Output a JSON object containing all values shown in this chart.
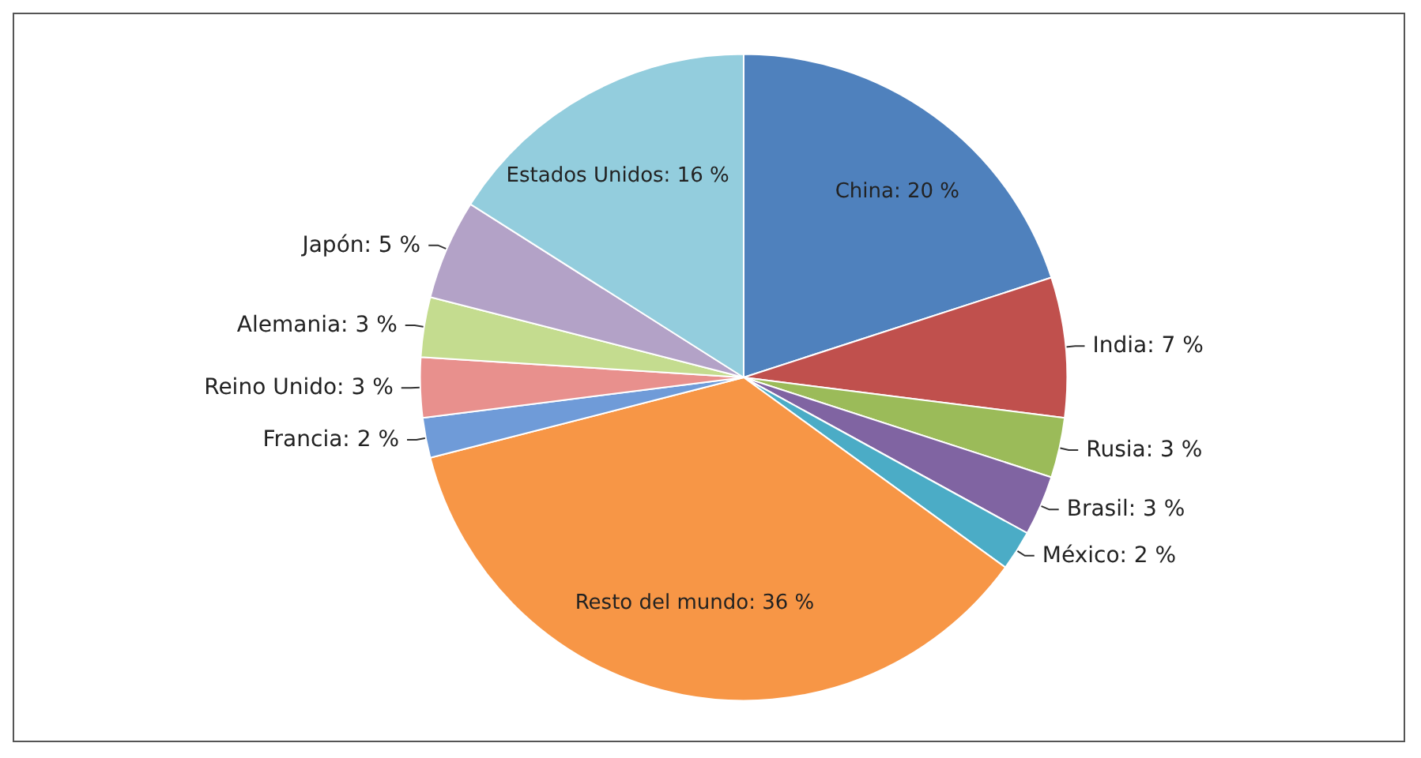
{
  "chart_data": {
    "type": "pie",
    "categories": [
      "China",
      "India",
      "Rusia",
      "Brasil",
      "México",
      "Resto del mundo",
      "Francia",
      "Reino Unido",
      "Alemania",
      "Japón",
      "Estados Unidos"
    ],
    "values": [
      20,
      7,
      3,
      3,
      2,
      36,
      2,
      3,
      3,
      5,
      16
    ],
    "colors": [
      "#4f81bd",
      "#c0504d",
      "#9bbb59",
      "#8064a2",
      "#4bacc6",
      "#f79646",
      "#6f9bd8",
      "#e8908d",
      "#c4dc8f",
      "#b3a2c7",
      "#93cddd"
    ],
    "value_labels": [
      "20 %",
      "7 %",
      "3 %",
      "3 %",
      "2 %",
      "36 %",
      "2 %",
      "3 %",
      "3 %",
      "5 %",
      "16 %"
    ],
    "legend": false
  }
}
